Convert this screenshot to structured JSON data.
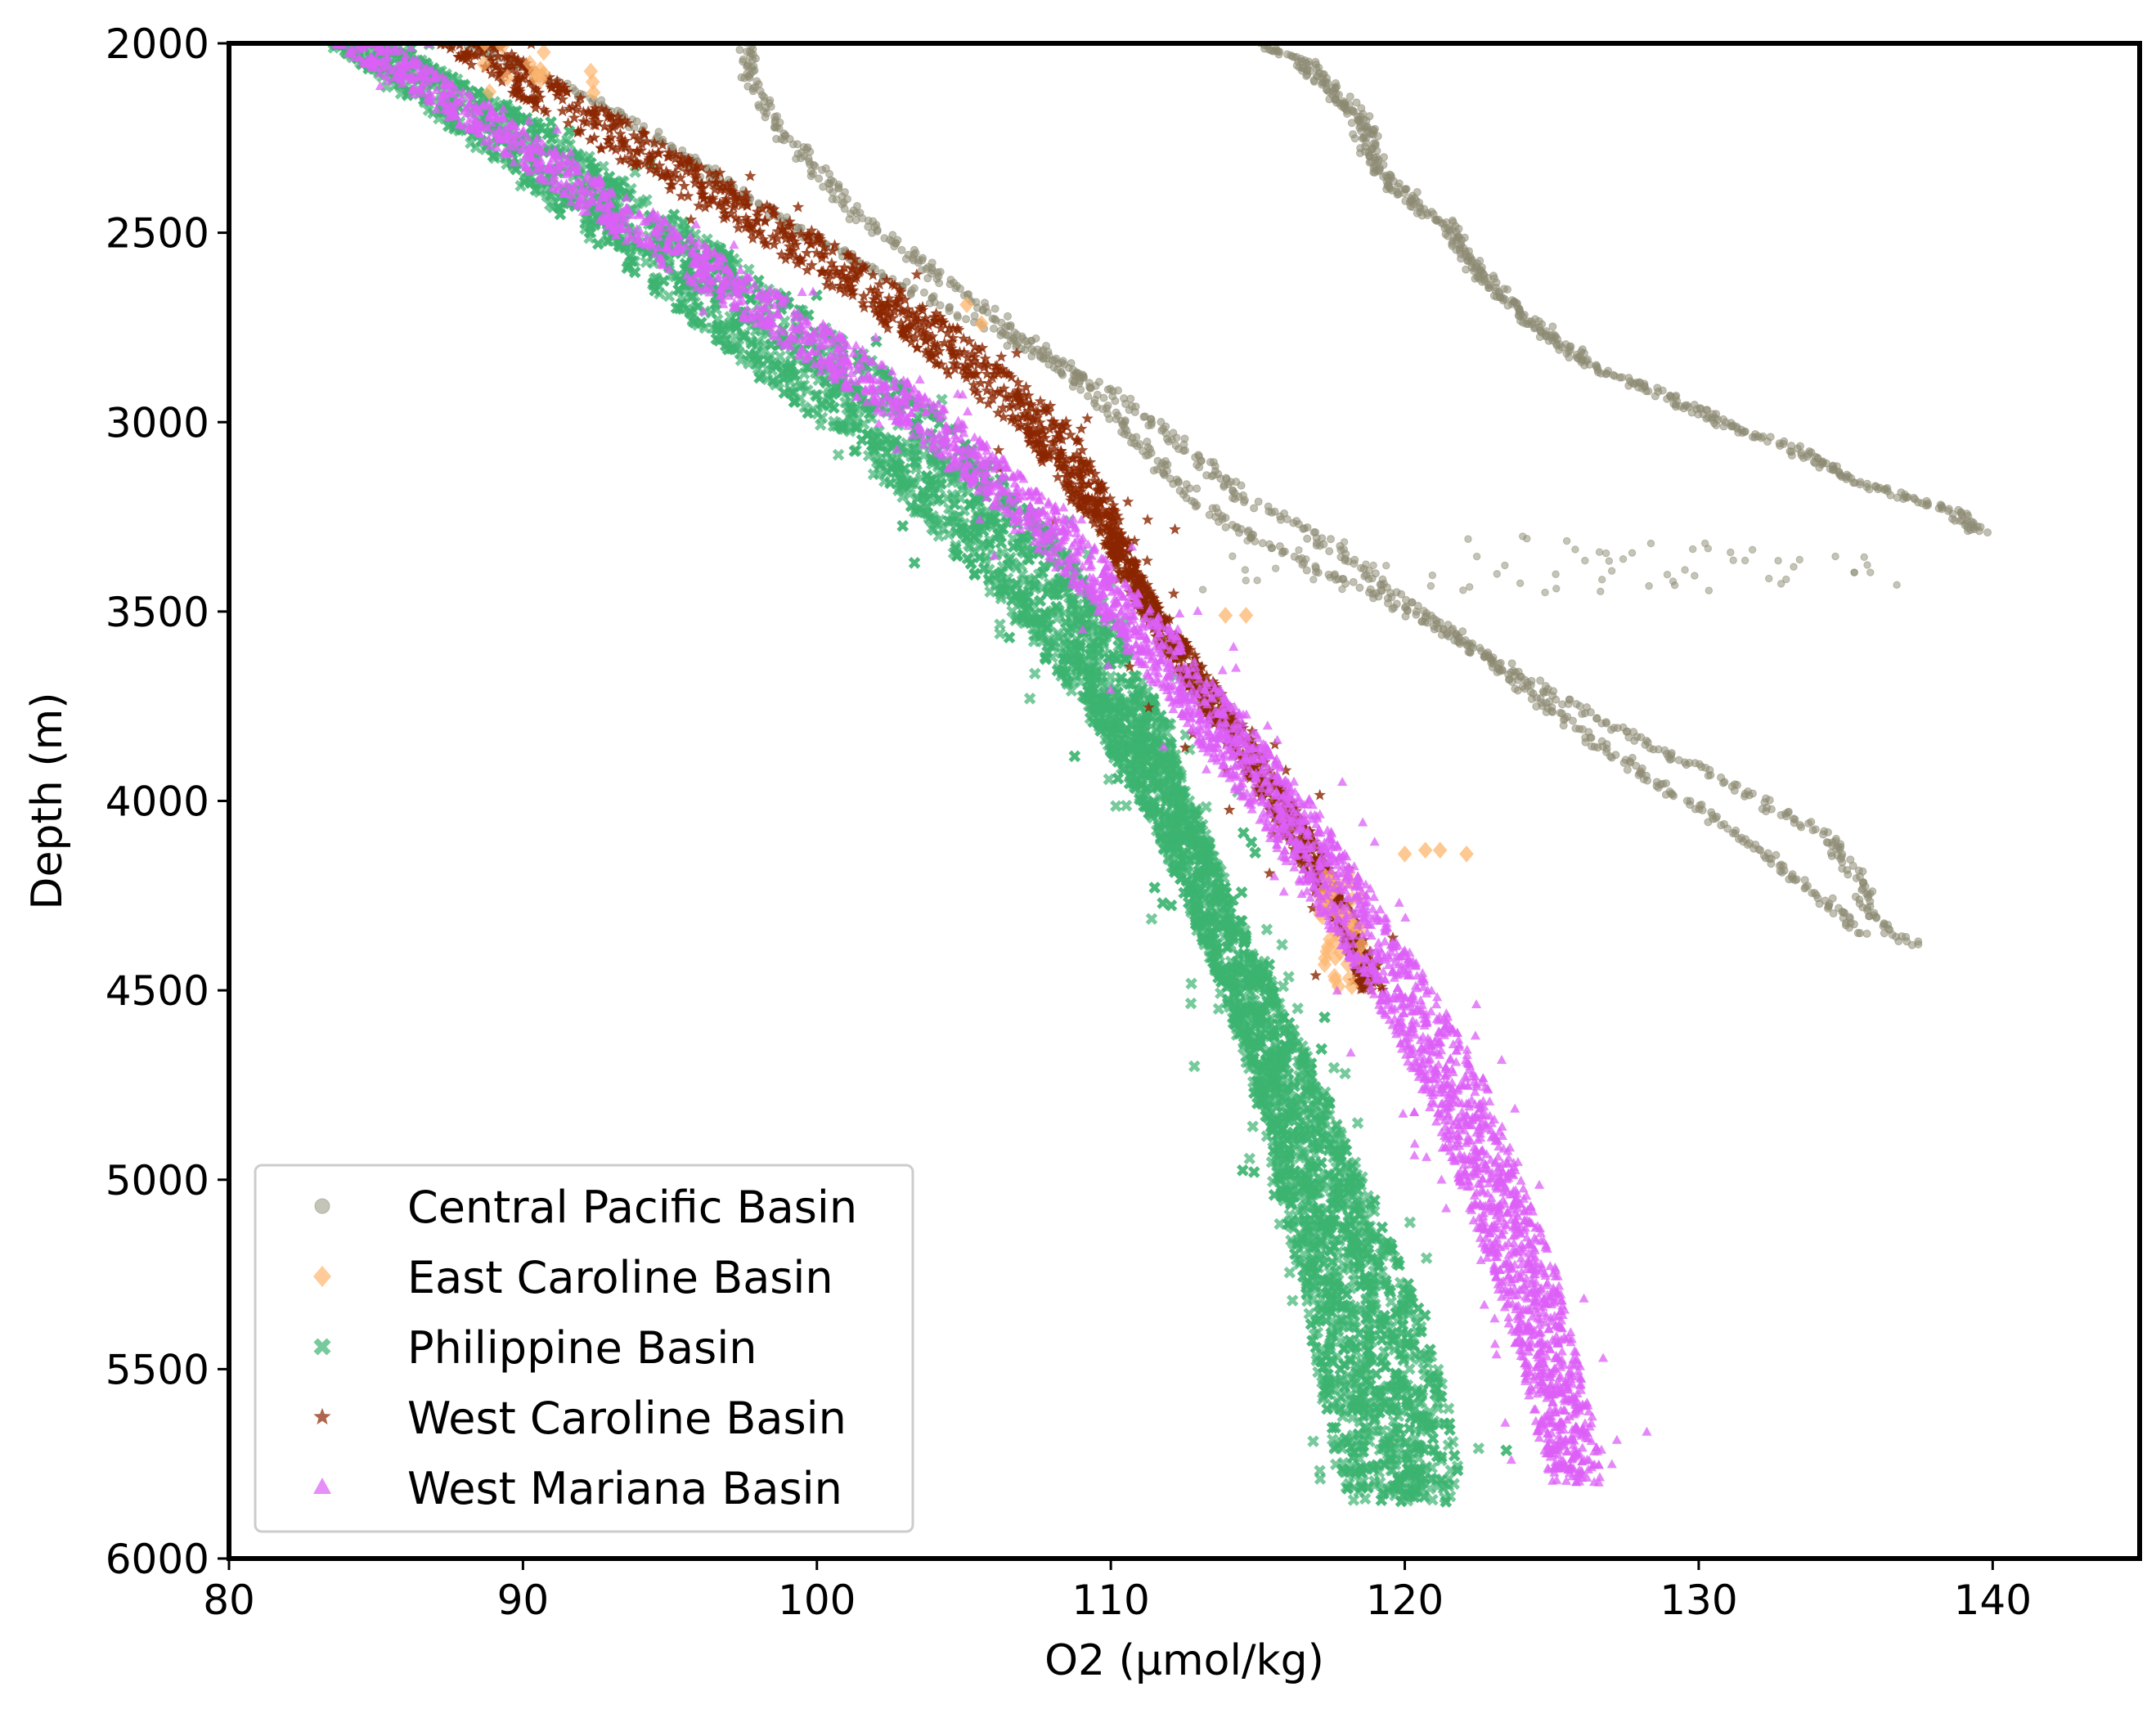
{
  "chart_data": {
    "type": "scatter",
    "title": "",
    "xlabel": "O2 (μmol/kg)",
    "ylabel": "Depth (m)",
    "xlim": [
      80,
      145
    ],
    "ylim": [
      6000,
      2000
    ],
    "y_inverted": true,
    "xticks": [
      "80",
      "90",
      "100",
      "110",
      "120",
      "130",
      "140"
    ],
    "yticks": [
      "2000",
      "2500",
      "3000",
      "3500",
      "4000",
      "4500",
      "5000",
      "5500",
      "6000"
    ],
    "grid": false,
    "legend_position": "lower-left",
    "series": [
      {
        "name": "Central Pacific Basin",
        "marker": "circle",
        "color": "#8c8a72",
        "profiles": [
          {
            "x": [
              97.5,
              97.8,
              98.5,
              99.6,
              100.7,
              102.1,
              103.9,
              105.7,
              107.4,
              109.0,
              110.3,
              111.5,
              112.8,
              114.8,
              117.4,
              120.0,
              122.4,
              124.6,
              127.0,
              129.6,
              132.2,
              134.5,
              135.4,
              135.8,
              137.2
            ],
            "y": [
              2000,
              2100,
              2200,
              2300,
              2400,
              2500,
              2600,
              2700,
              2800,
              2900,
              3000,
              3100,
              3200,
              3300,
              3400,
              3500,
              3600,
              3700,
              3800,
              3900,
              4000,
              4100,
              4200,
              4300,
              4380
            ]
          },
          {
            "x": [
              88.0,
              91.0,
              93.5,
              95.5,
              97.5,
              99.5,
              102.0,
              104.5,
              107.0,
              109.5,
              111.5,
              113.0,
              114.5,
              117.0,
              119.5,
              121.5,
              124.0,
              126.5,
              128.5,
              130.5,
              132.5,
              134.0,
              134.8,
              135.5
            ],
            "y": [
              2000,
              2100,
              2200,
              2300,
              2400,
              2500,
              2600,
              2700,
              2800,
              2900,
              3000,
              3100,
              3200,
              3300,
              3450,
              3550,
              3700,
              3850,
              3950,
              4050,
              4150,
              4250,
              4300,
              4350
            ]
          },
          {
            "x": [
              115.0,
              116.5,
              117.5,
              118.5,
              119.0,
              120.5,
              121.5,
              122.0,
              123.0,
              124.0,
              125.5,
              126.5,
              128.0,
              130.0,
              131.5,
              133.0,
              134.3,
              135.5,
              137.2,
              138.8,
              139.5
            ],
            "y": [
              2000,
              2050,
              2120,
              2200,
              2320,
              2440,
              2480,
              2560,
              2640,
              2720,
              2800,
              2860,
              2900,
              2970,
              3030,
              3060,
              3110,
              3160,
              3200,
              3240,
              3290
            ]
          }
        ]
      },
      {
        "name": "East Caroline Basin",
        "marker": "diamond",
        "color": "#fdb56d",
        "points": [
          [
            88.7,
            2000
          ],
          [
            90.7,
            2080
          ],
          [
            92.4,
            2130
          ],
          [
            105.1,
            2690
          ],
          [
            105.6,
            2740
          ],
          [
            113.9,
            3510
          ],
          [
            114.6,
            3510
          ],
          [
            117.3,
            4200
          ],
          [
            118.0,
            4300
          ],
          [
            117.8,
            4400
          ],
          [
            118.2,
            4490
          ],
          [
            120.0,
            4140
          ],
          [
            120.7,
            4130
          ],
          [
            121.2,
            4130
          ],
          [
            122.1,
            4140
          ]
        ]
      },
      {
        "name": "Philippine Basin",
        "marker": "x",
        "color": "#3cb371",
        "x_low": [
          83.5,
          88.0,
          92.0,
          96.0,
          100.0,
          103.5,
          106.5,
          109.0,
          111.0,
          112.5,
          113.8,
          114.8,
          115.6,
          116.4,
          117.0,
          117.6,
          118.2
        ],
        "x_high": [
          85.5,
          91.5,
          96.0,
          100.5,
          104.5,
          107.6,
          110.0,
          111.6,
          112.8,
          114.1,
          115.6,
          117.2,
          118.6,
          120.0,
          121.2,
          121.8,
          121.8
        ],
        "y": [
          2000,
          2250,
          2500,
          2750,
          3000,
          3250,
          3500,
          3750,
          4000,
          4250,
          4500,
          4750,
          5000,
          5250,
          5500,
          5750,
          5850
        ]
      },
      {
        "name": "West Caroline Basin",
        "marker": "star",
        "color": "#8b2500",
        "x_low": [
          87.0,
          92.0,
          97.5,
          102.5,
          106.5,
          109.2,
          110.3,
          111.3,
          113.5,
          115.6,
          116.7,
          117.8,
          118.5
        ],
        "x_high": [
          89.0,
          94.5,
          100.0,
          104.8,
          108.6,
          110.3,
          111.0,
          112.3,
          114.5,
          116.6,
          117.6,
          118.6,
          119.3
        ],
        "y": [
          2000,
          2250,
          2500,
          2750,
          3000,
          3250,
          3400,
          3550,
          3800,
          4050,
          4200,
          4350,
          4500
        ]
      },
      {
        "name": "West Mariana Basin",
        "marker": "triangle",
        "color": "#dc5ff7",
        "x_low": [
          83.5,
          88.5,
          93.0,
          98.0,
          102.5,
          106.5,
          109.5,
          112.0,
          114.5,
          116.7,
          118.8,
          120.5,
          121.8,
          123.0,
          124.0,
          124.6,
          125.0
        ],
        "x_high": [
          85.5,
          90.5,
          95.5,
          100.5,
          105.0,
          108.5,
          111.5,
          114.2,
          116.8,
          119.0,
          121.0,
          122.8,
          124.0,
          125.2,
          126.0,
          126.5,
          126.8
        ],
        "y": [
          2000,
          2250,
          2500,
          2750,
          3000,
          3250,
          3500,
          3750,
          4000,
          4250,
          4500,
          4750,
          5000,
          5250,
          5500,
          5700,
          5800
        ]
      }
    ]
  }
}
